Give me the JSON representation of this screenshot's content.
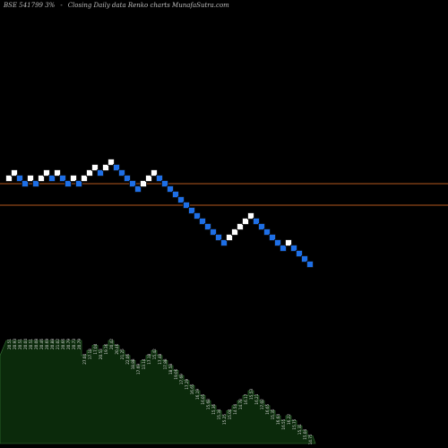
{
  "header": {
    "symbol": "BSE 541799 3%",
    "arrow": "-",
    "title": "Closing Daily data  Renko  charts MunafaSutra.com"
  },
  "colors": {
    "background": "#000000",
    "up_brick": "#ffffff",
    "down_brick": "#1e6fe6",
    "brick_border": "#0a0a0a",
    "reference_line": "#b4581e",
    "volume_fill": "#0b2a0b",
    "volume_edge": "#3a7a3a",
    "label_color": "#d8d8d8"
  },
  "chart_data": {
    "type": "renko",
    "brick_size": 1,
    "reference_lines": [
      20.24,
      18.26
    ],
    "bricks": [
      {
        "value": 20.88,
        "dir": "up"
      },
      {
        "value": 21.28,
        "dir": "up"
      },
      {
        "value": 20.88,
        "dir": "down"
      },
      {
        "value": 20.48,
        "dir": "down"
      },
      {
        "value": 20.88,
        "dir": "up"
      },
      {
        "value": 20.48,
        "dir": "down"
      },
      {
        "value": 20.88,
        "dir": "up"
      },
      {
        "value": 21.28,
        "dir": "up"
      },
      {
        "value": 20.88,
        "dir": "down"
      },
      {
        "value": 21.28,
        "dir": "up"
      },
      {
        "value": 20.88,
        "dir": "down"
      },
      {
        "value": 20.48,
        "dir": "down"
      },
      {
        "value": 20.88,
        "dir": "up"
      },
      {
        "value": 20.48,
        "dir": "down"
      },
      {
        "value": 20.88,
        "dir": "up"
      },
      {
        "value": 21.28,
        "dir": "up"
      },
      {
        "value": 21.68,
        "dir": "up"
      },
      {
        "value": 21.28,
        "dir": "down"
      },
      {
        "value": 21.68,
        "dir": "up"
      },
      {
        "value": 22.08,
        "dir": "up"
      },
      {
        "value": 21.68,
        "dir": "down"
      },
      {
        "value": 21.28,
        "dir": "down"
      },
      {
        "value": 20.88,
        "dir": "down"
      },
      {
        "value": 20.48,
        "dir": "down"
      },
      {
        "value": 20.08,
        "dir": "down"
      },
      {
        "value": 20.48,
        "dir": "up"
      },
      {
        "value": 20.88,
        "dir": "up"
      },
      {
        "value": 21.28,
        "dir": "up"
      },
      {
        "value": 20.88,
        "dir": "down"
      },
      {
        "value": 20.48,
        "dir": "down"
      },
      {
        "value": 20.08,
        "dir": "down"
      },
      {
        "value": 19.68,
        "dir": "down"
      },
      {
        "value": 19.28,
        "dir": "down"
      },
      {
        "value": 18.88,
        "dir": "down"
      },
      {
        "value": 18.48,
        "dir": "down"
      },
      {
        "value": 18.08,
        "dir": "down"
      },
      {
        "value": 17.68,
        "dir": "down"
      },
      {
        "value": 17.28,
        "dir": "down"
      },
      {
        "value": 16.88,
        "dir": "down"
      },
      {
        "value": 16.48,
        "dir": "down"
      },
      {
        "value": 16.08,
        "dir": "down"
      },
      {
        "value": 16.48,
        "dir": "up"
      },
      {
        "value": 16.88,
        "dir": "up"
      },
      {
        "value": 17.28,
        "dir": "up"
      },
      {
        "value": 17.68,
        "dir": "up"
      },
      {
        "value": 18.08,
        "dir": "up"
      },
      {
        "value": 17.68,
        "dir": "down"
      },
      {
        "value": 17.28,
        "dir": "down"
      },
      {
        "value": 16.88,
        "dir": "down"
      },
      {
        "value": 16.48,
        "dir": "down"
      },
      {
        "value": 16.08,
        "dir": "down"
      },
      {
        "value": 15.68,
        "dir": "down"
      },
      {
        "value": 16.08,
        "dir": "up"
      },
      {
        "value": 15.68,
        "dir": "down"
      },
      {
        "value": 15.28,
        "dir": "down"
      },
      {
        "value": 14.88,
        "dir": "down"
      },
      {
        "value": 14.48,
        "dir": "down"
      }
    ],
    "volume_labels": [
      "20.51",
      "20.93",
      "20.51",
      "20.04",
      "20.51",
      "20.08",
      "20.46",
      "20.69",
      "20.88",
      "21.02",
      "20.66",
      "20.79",
      "20.73",
      "20.79",
      "27.04",
      "17.18",
      "17.04",
      "20.53",
      "19.36",
      "20.42",
      "20.46",
      "21.25",
      "22.06",
      "18.88",
      "17.69",
      "13.14",
      "17.18",
      "15.42",
      "17.48",
      "17.88",
      "18.58",
      "19.06",
      "17.69",
      "17.29",
      "16.65",
      "16.19",
      "16.05",
      "15.68",
      "15.36",
      "15.34",
      "15.25",
      "15.04",
      "14.54",
      "14.78",
      "16.17",
      "15.53",
      "16.21",
      "17.02",
      "16.65",
      "15.35",
      "16.64",
      "16.55",
      "16.22",
      "15.75",
      "15.31",
      "15.04",
      "14.75"
    ]
  }
}
